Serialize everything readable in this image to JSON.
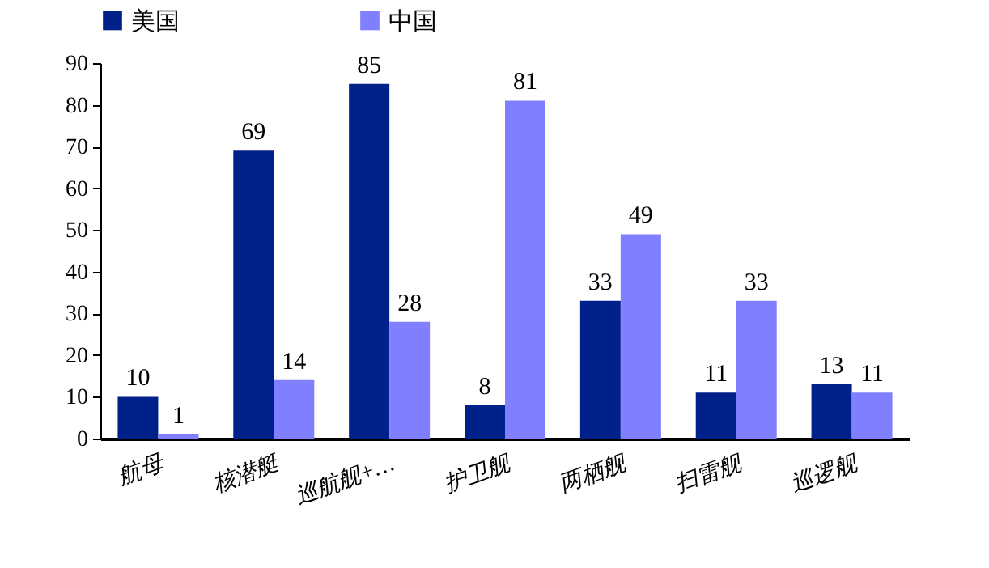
{
  "chart_data": {
    "type": "bar",
    "categories": [
      "航母",
      "核潜艇",
      "巡航舰+…",
      "护卫舰",
      "两栖舰",
      "扫雷舰",
      "巡逻舰"
    ],
    "series": [
      {
        "name": "美国",
        "color": "#00218a",
        "values": [
          10,
          69,
          85,
          8,
          33,
          11,
          13
        ]
      },
      {
        "name": "中国",
        "color": "#7f7fff",
        "values": [
          1,
          14,
          28,
          81,
          49,
          33,
          11
        ]
      }
    ],
    "ylim": [
      0,
      90
    ],
    "yticks": [
      0,
      10,
      20,
      30,
      40,
      50,
      60,
      70,
      80,
      90
    ],
    "grid": false,
    "legend": "top",
    "data_labels": true
  }
}
